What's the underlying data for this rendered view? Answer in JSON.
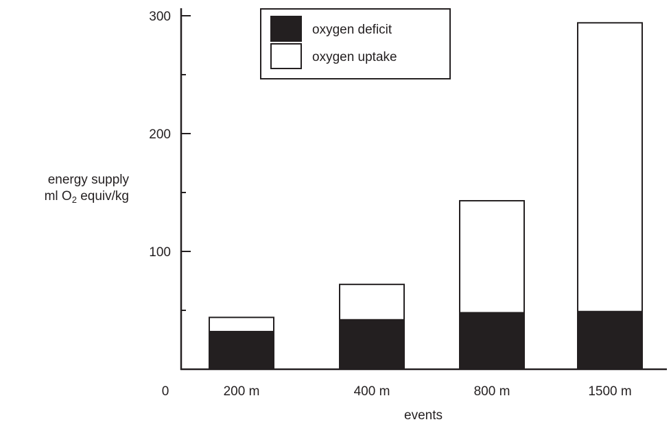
{
  "chart_data": {
    "type": "bar",
    "stacked": true,
    "categories": [
      "200 m",
      "400 m",
      "800 m",
      "1500 m"
    ],
    "series": [
      {
        "name": "oxygen deficit",
        "values": [
          32,
          42,
          48,
          49
        ],
        "color": "#231f20"
      },
      {
        "name": "oxygen uptake",
        "values": [
          12,
          30,
          95,
          245
        ],
        "color": "#ffffff"
      }
    ],
    "title": "",
    "xlabel": "events",
    "ylabel_line1": "energy supply",
    "ylabel_line2_pre": "ml O",
    "ylabel_line2_sub": "2",
    "ylabel_line2_post": " equiv/kg",
    "ylim": [
      0,
      300
    ],
    "yticks": [
      100,
      200,
      300
    ],
    "zero_label": "0",
    "legend_position": "top-center",
    "grid": false
  }
}
